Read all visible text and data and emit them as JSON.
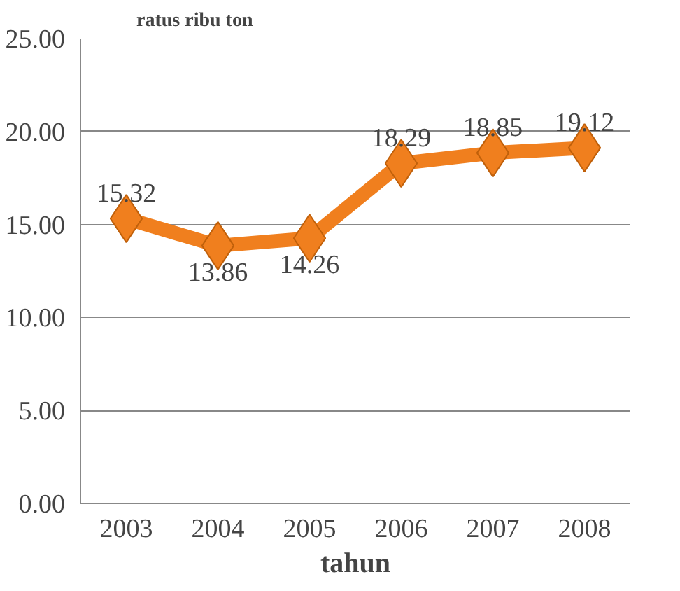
{
  "chart_data": {
    "type": "line",
    "categories": [
      "2003",
      "2004",
      "2005",
      "2006",
      "2007",
      "2008"
    ],
    "series": [
      {
        "color": "#f07f1e",
        "values": [
          15.32,
          13.86,
          14.26,
          18.29,
          18.85,
          19.12
        ]
      }
    ],
    "ylabel": "ratus ribu ton",
    "xlabel": "tahun",
    "ylim": [
      0,
      25
    ],
    "yticks": [
      {
        "value": 0,
        "label": "0.00"
      },
      {
        "value": 5,
        "label": "5.00"
      },
      {
        "value": 10,
        "label": "10.00"
      },
      {
        "value": 15,
        "label": "15.00"
      },
      {
        "value": 20,
        "label": "20.00"
      },
      {
        "value": 25,
        "label": "25.00"
      }
    ],
    "grid": "y",
    "marker": "diamond",
    "line_style": "solid",
    "data_labels": true
  }
}
